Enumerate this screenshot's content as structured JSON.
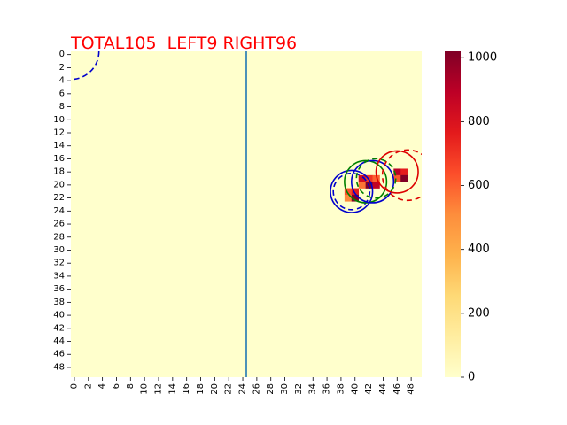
{
  "chart_data": {
    "type": "heatmap",
    "title": "TOTAL105  LEFT9 RIGHT96",
    "grid_size": [
      50,
      50
    ],
    "x_tick_labels": [
      "0",
      "2",
      "4",
      "6",
      "8",
      "10",
      "12",
      "14",
      "16",
      "18",
      "20",
      "22",
      "24",
      "26",
      "28",
      "30",
      "32",
      "34",
      "36",
      "38",
      "40",
      "42",
      "44",
      "46",
      "48"
    ],
    "y_tick_labels": [
      "0",
      "2",
      "4",
      "6",
      "8",
      "10",
      "12",
      "14",
      "16",
      "18",
      "20",
      "22",
      "24",
      "26",
      "28",
      "30",
      "32",
      "34",
      "36",
      "38",
      "40",
      "42",
      "44",
      "46",
      "48"
    ],
    "colorbar": {
      "min": 0,
      "max": 1020,
      "ticks": [
        "0",
        "200",
        "400",
        "600",
        "800",
        "1000"
      ],
      "colormap": "YlOrRd"
    },
    "midline_x": 25,
    "cells": [
      {
        "x": 39,
        "y": 21,
        "value": 640
      },
      {
        "x": 40,
        "y": 21,
        "value": 760
      },
      {
        "x": 39,
        "y": 22,
        "value": 520
      },
      {
        "x": 40,
        "y": 22,
        "value": 1020
      },
      {
        "x": 41,
        "y": 19,
        "value": 820
      },
      {
        "x": 42,
        "y": 19,
        "value": 700
      },
      {
        "x": 41,
        "y": 20,
        "value": 560
      },
      {
        "x": 42,
        "y": 20,
        "value": 1020
      },
      {
        "x": 43,
        "y": 19,
        "value": 600
      },
      {
        "x": 43,
        "y": 20,
        "value": 880
      },
      {
        "x": 46,
        "y": 18,
        "value": 900
      },
      {
        "x": 47,
        "y": 18,
        "value": 760
      },
      {
        "x": 46,
        "y": 19,
        "value": 620
      },
      {
        "x": 47,
        "y": 19,
        "value": 1020
      }
    ],
    "markers": [
      {
        "cx": 40,
        "cy": 21.5,
        "r": 3,
        "color": "#0000cc",
        "style": "solid"
      },
      {
        "cx": 40,
        "cy": 21.5,
        "r": 2.6,
        "color": "#0000cc",
        "style": "dashed"
      },
      {
        "cx": 42,
        "cy": 20,
        "r": 3,
        "color": "#008000",
        "style": "solid"
      },
      {
        "cx": 43,
        "cy": 20,
        "r": 3,
        "color": "#0000cc",
        "style": "solid"
      },
      {
        "cx": 43.5,
        "cy": 19.5,
        "r": 2.8,
        "color": "#008000",
        "style": "dashed"
      },
      {
        "cx": 46.5,
        "cy": 18.5,
        "r": 3,
        "color": "#dd0000",
        "style": "solid"
      },
      {
        "cx": 48,
        "cy": 19,
        "r": 3.6,
        "color": "#dd0000",
        "style": "dashed"
      },
      {
        "cx": 0,
        "cy": 0,
        "r": 4,
        "color": "#0000cc",
        "style": "dashed"
      }
    ],
    "colors": {
      "background_cell": "#ffffcc",
      "midline": "#1f77b4",
      "title": "#ff0000"
    }
  }
}
